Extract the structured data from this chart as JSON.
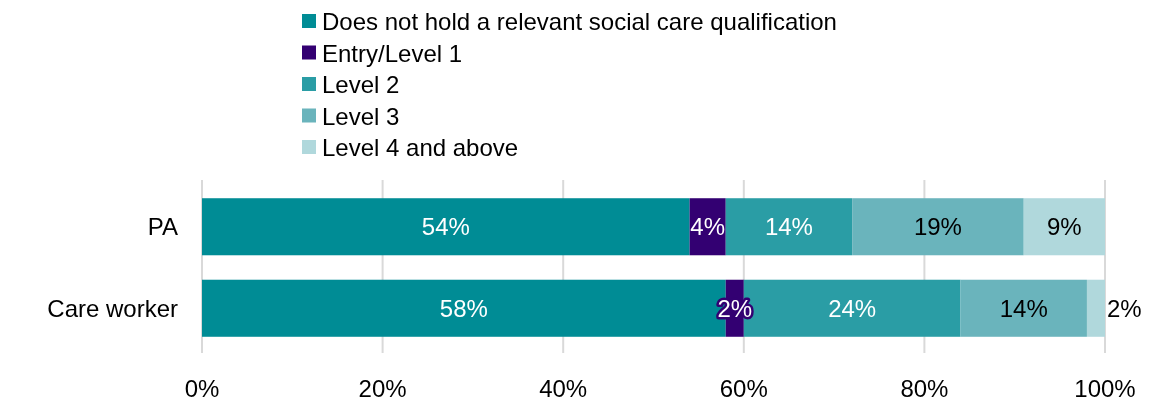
{
  "chart_data": {
    "type": "bar",
    "orientation": "horizontal",
    "stacked": true,
    "categories": [
      "PA",
      "Care worker"
    ],
    "series": [
      {
        "name": "Does not hold a relevant social care qualification",
        "color": "#008c95",
        "values": [
          54,
          58
        ]
      },
      {
        "name": "Entry/Level 1",
        "color": "#330072",
        "values": [
          4,
          2
        ]
      },
      {
        "name": "Level 2",
        "color": "#2a9da5",
        "values": [
          14,
          24
        ]
      },
      {
        "name": "Level 3",
        "color": "#6ab4bc",
        "values": [
          19,
          14
        ]
      },
      {
        "name": "Level 4 and above",
        "color": "#b0d8dc",
        "values": [
          9,
          2
        ]
      }
    ],
    "xlim": [
      0,
      100
    ],
    "xticks": [
      {
        "value": 0,
        "label": "0%"
      },
      {
        "value": 20,
        "label": "20%"
      },
      {
        "value": 40,
        "label": "40%"
      },
      {
        "value": 60,
        "label": "60%"
      },
      {
        "value": 80,
        "label": "80%"
      },
      {
        "value": 100,
        "label": "100%"
      }
    ],
    "value_labels": [
      [
        "54%",
        "58%"
      ],
      [
        "4%",
        "2%"
      ],
      [
        "14%",
        "24%"
      ],
      [
        "19%",
        "14%"
      ],
      [
        "9%",
        "2%"
      ]
    ],
    "grid": "x",
    "legend": "top"
  }
}
